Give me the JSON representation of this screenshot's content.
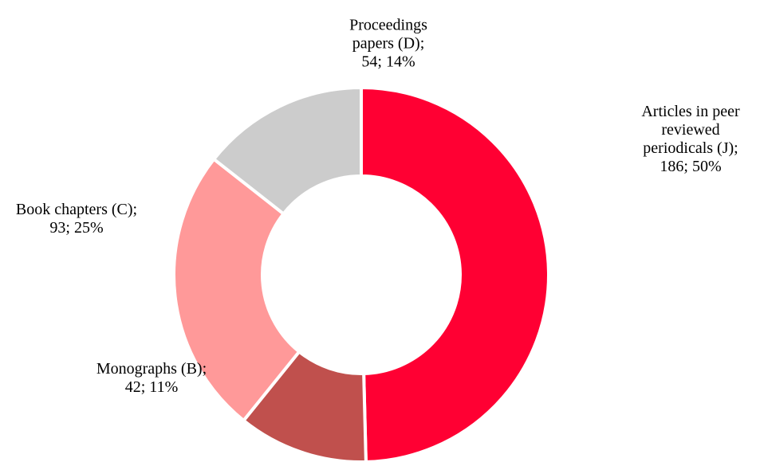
{
  "chart_data": {
    "type": "donut",
    "values": [
      186,
      42,
      93,
      54
    ],
    "value_labels": [
      "Articles in peer reviewed periodicals (J); 186; 50%",
      "Monographs (B); 42; 11%",
      "Book chapters (C); 93; 25%",
      "Proceedings papers (D); 54; 14%"
    ],
    "colors": [
      "#ff0033",
      "#c0504d",
      "#ff9999",
      "#cccccc"
    ]
  }
}
